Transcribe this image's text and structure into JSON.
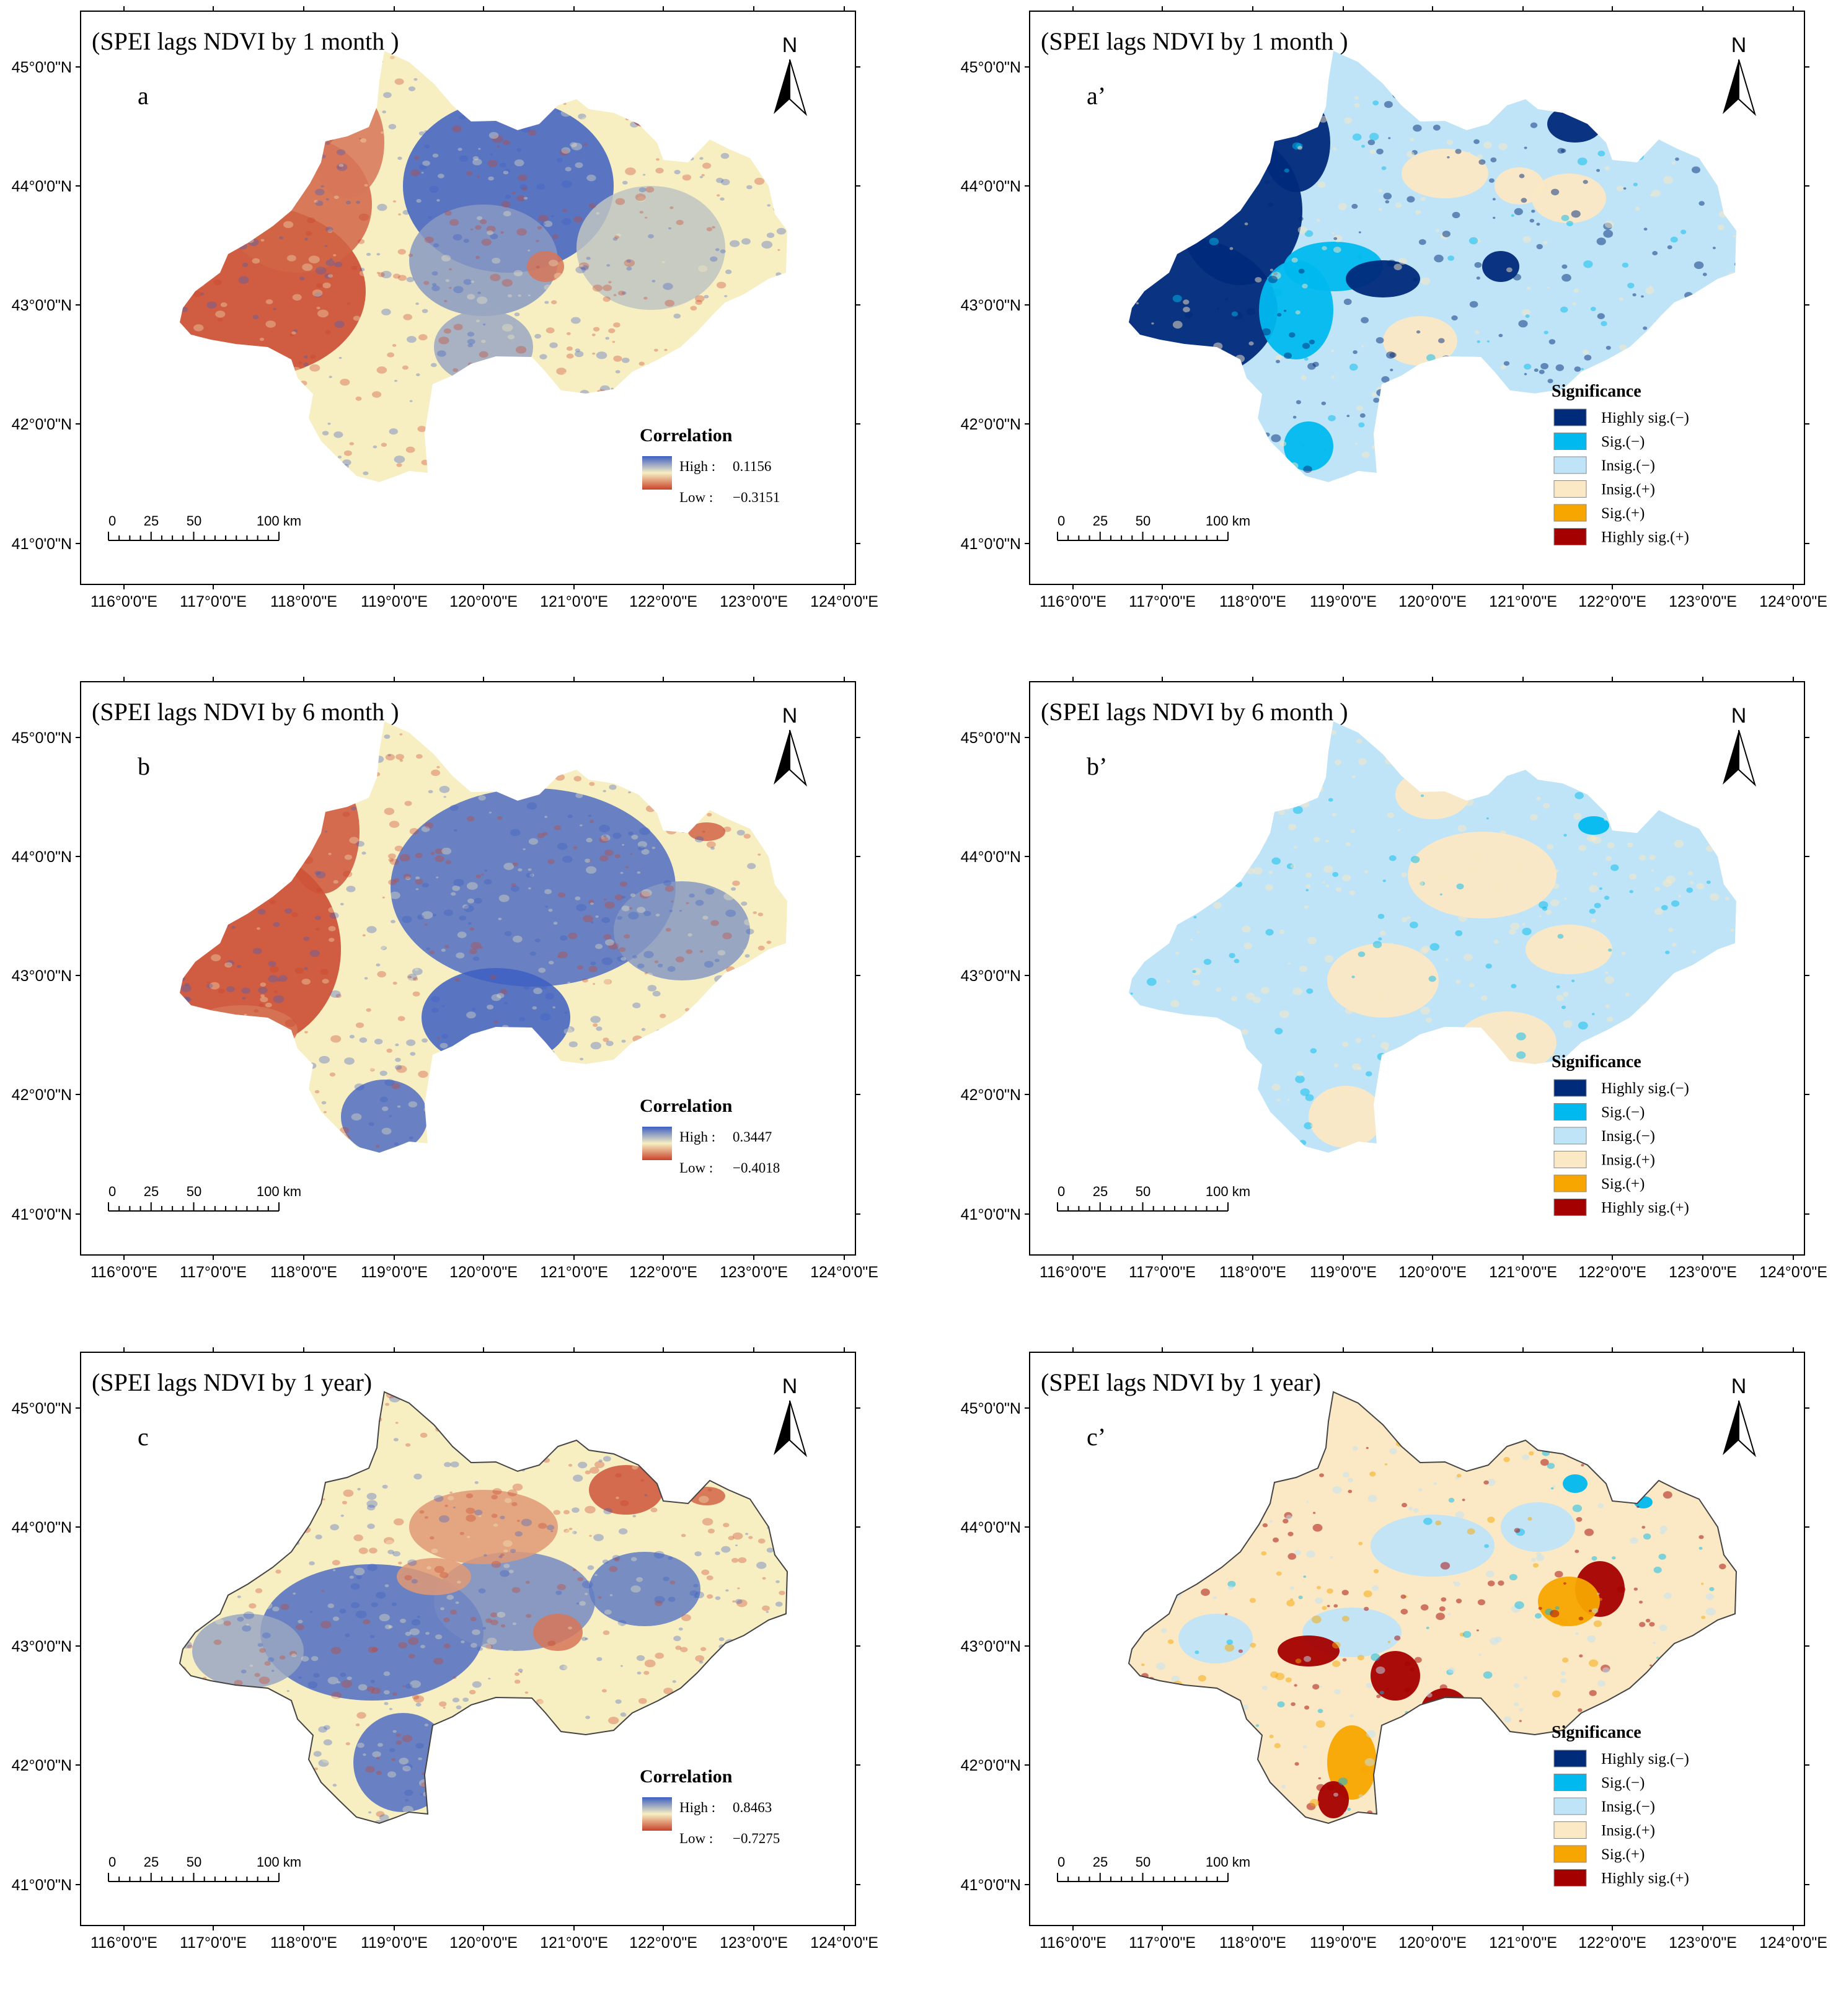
{
  "figure": {
    "lat_ticks": [
      "45°0'0\"N",
      "44°0'0\"N",
      "43°0'0\"N",
      "42°0'0\"N",
      "41°0'0\"N"
    ],
    "lon_ticks": [
      "116°0'0\"E",
      "117°0'0\"E",
      "118°0'0\"E",
      "119°0'0\"E",
      "120°0'0\"E",
      "121°0'0\"E",
      "122°0'0\"E",
      "123°0'0\"E",
      "124°0'0\"E"
    ],
    "north_label": "N",
    "scale_labels": [
      "0",
      "25",
      "50",
      "100 km"
    ],
    "correlation_legend_title": "Correlation",
    "significance_legend_title": "Significance",
    "high_label": "High :",
    "low_label": "Low :",
    "significance_classes": [
      {
        "label": "Highly sig.(−)",
        "color": "#002a7a"
      },
      {
        "label": "Sig.(−)",
        "color": "#00b9ee"
      },
      {
        "label": "Insig.(−)",
        "color": "#bfe4f7"
      },
      {
        "label": "Insig.(+)",
        "color": "#fbe8c4"
      },
      {
        "label": "Sig.(+)",
        "color": "#f7a600"
      },
      {
        "label": "Highly sig.(+)",
        "color": "#a50000"
      }
    ],
    "colors": {
      "corr_high": "#3d5fc2",
      "corr_mid": "#f7efc2",
      "corr_low": "#c9422a"
    }
  },
  "panels": [
    {
      "letter": "a",
      "title": "(SPEI lags NDVI by 1 month )",
      "type": "correlation",
      "high": "0.1156",
      "low": "−0.3151",
      "pattern": "m1"
    },
    {
      "letter": "a’",
      "title": "(SPEI lags NDVI by 1 month )",
      "type": "significance",
      "pattern": "m1"
    },
    {
      "letter": "b",
      "title": "(SPEI lags NDVI by 6 month )",
      "type": "correlation",
      "high": "0.3447",
      "low": "−0.4018",
      "pattern": "m6"
    },
    {
      "letter": "b’",
      "title": "(SPEI lags NDVI by 6 month )",
      "type": "significance",
      "pattern": "m6"
    },
    {
      "letter": "c",
      "title": "(SPEI lags NDVI by 1 year)",
      "type": "correlation",
      "high": "0.8463",
      "low": "−0.7275",
      "pattern": "y1"
    },
    {
      "letter": "c’",
      "title": "(SPEI lags NDVI by 1 year)",
      "type": "significance",
      "pattern": "y1"
    }
  ]
}
